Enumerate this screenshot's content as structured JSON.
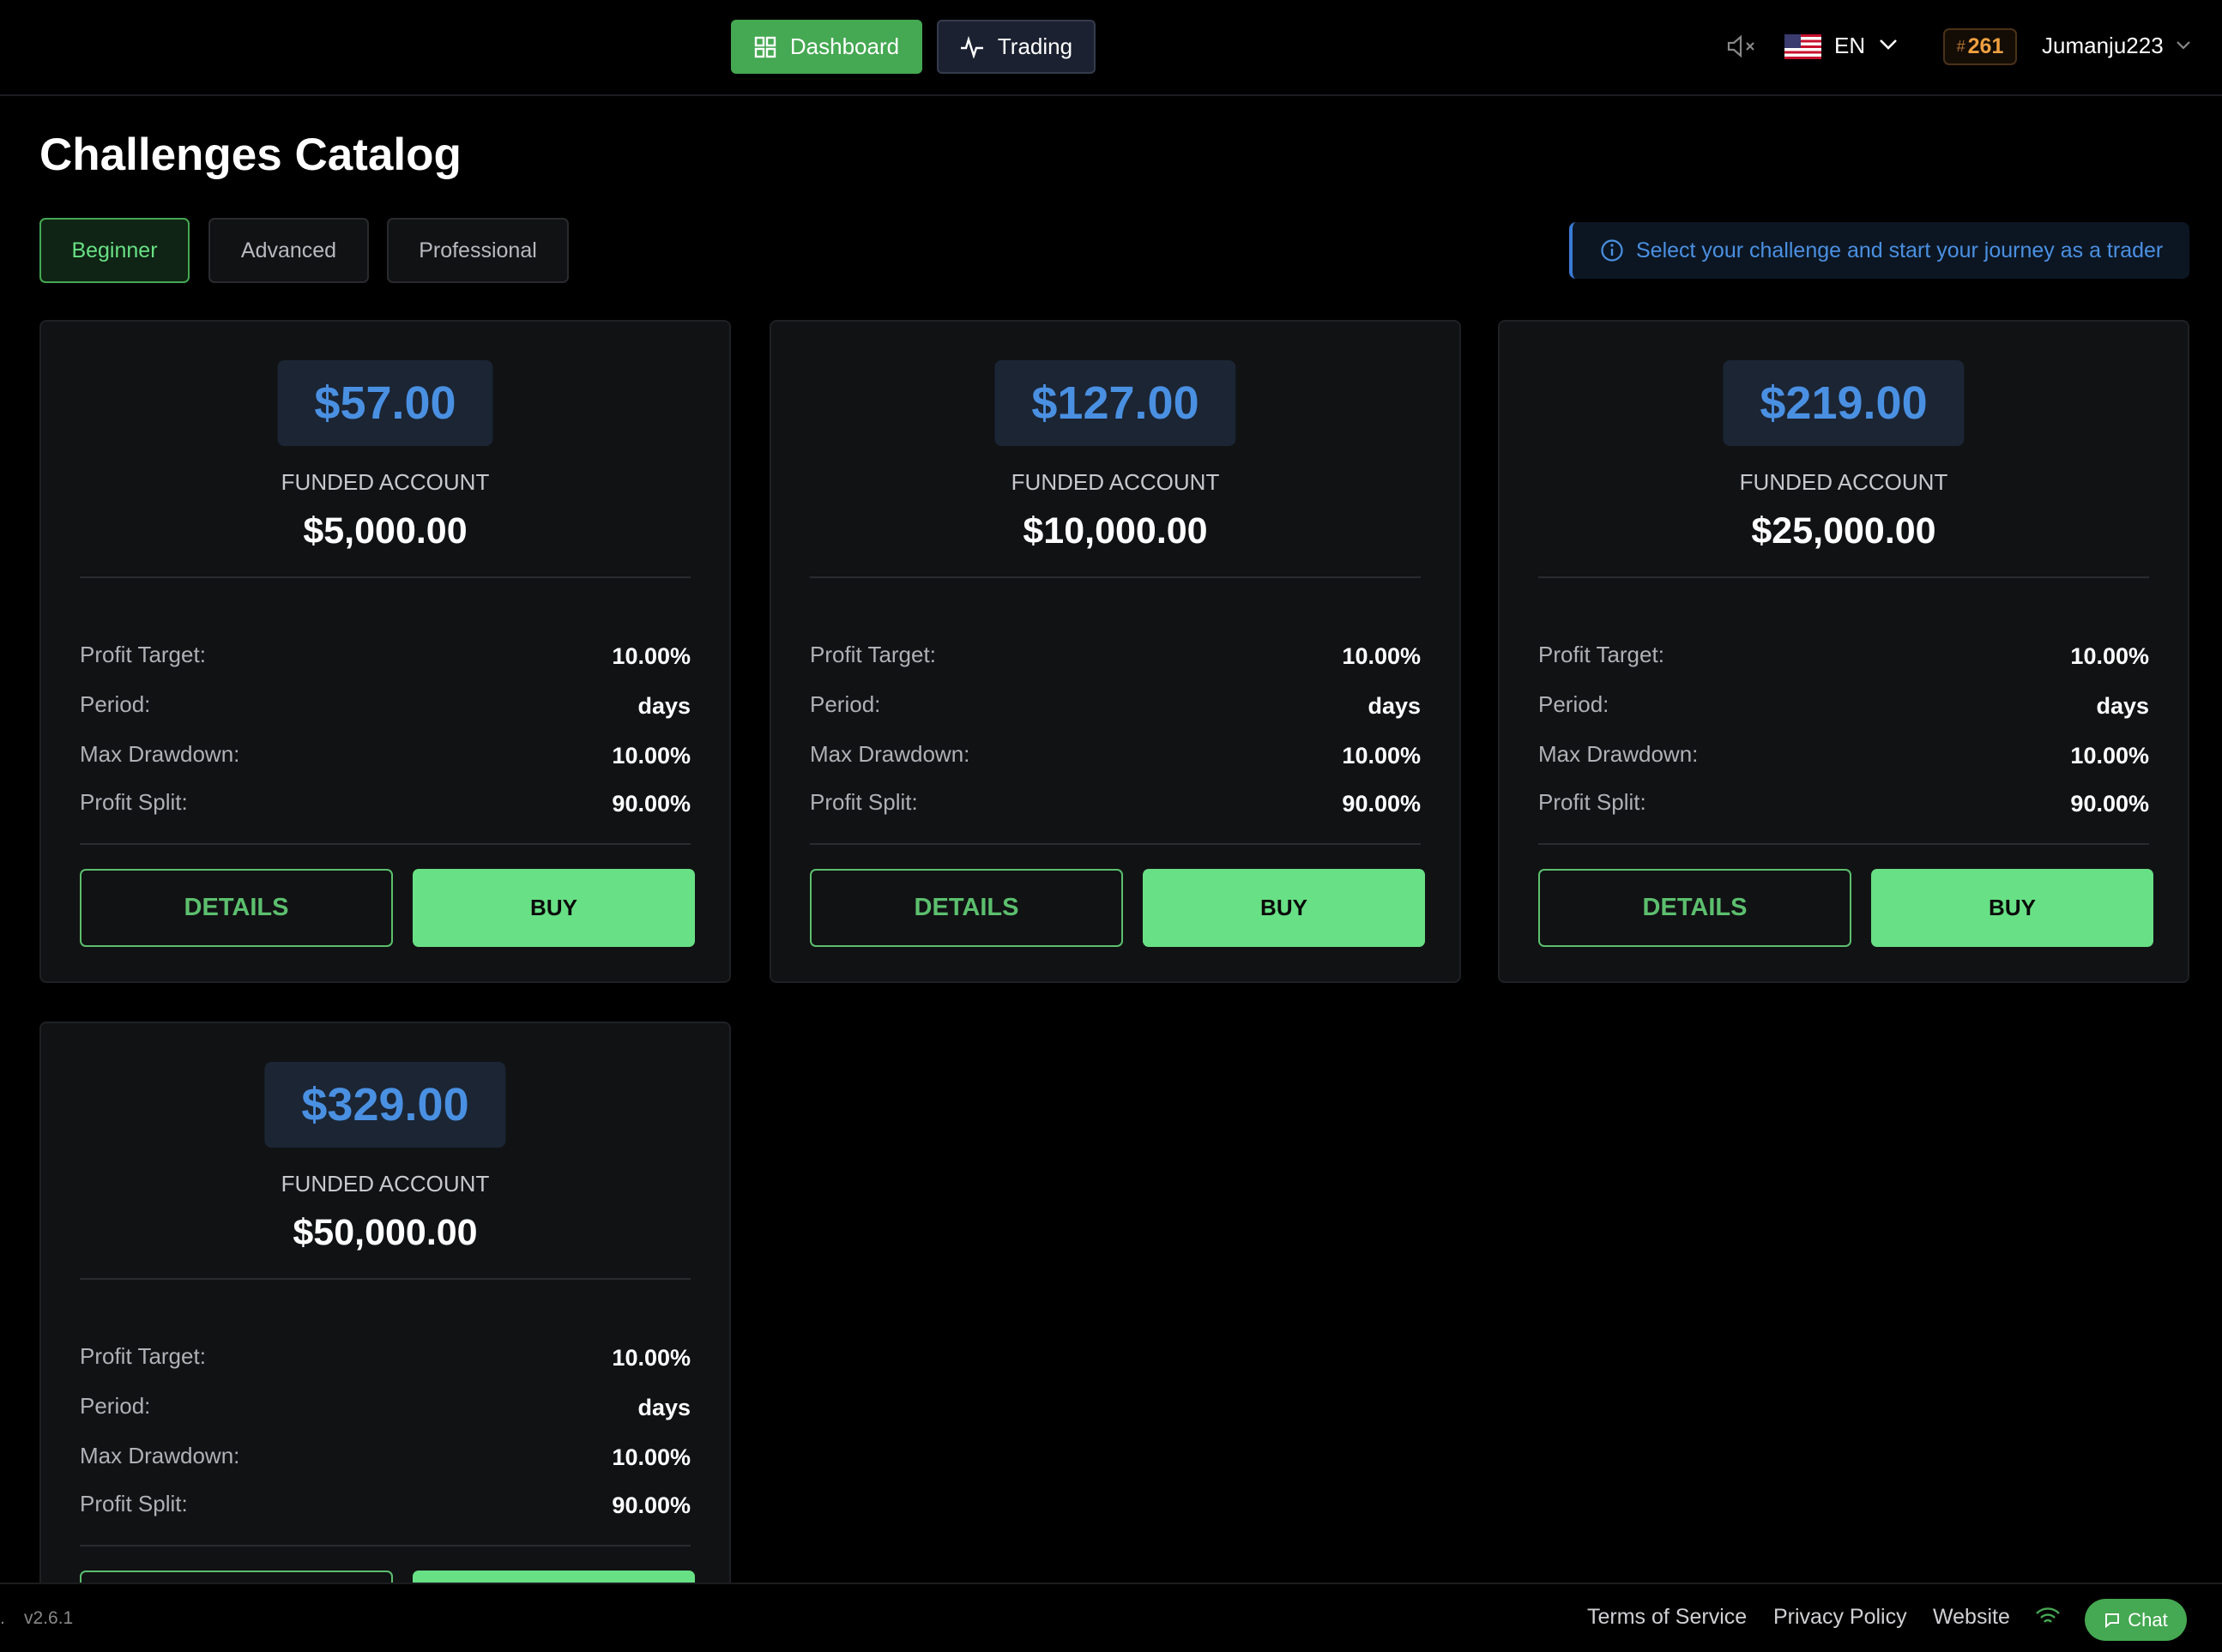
{
  "header": {
    "nav": [
      "Dashboard",
      "Trading"
    ],
    "language": "EN",
    "rank": "261",
    "username": "Jumanju223"
  },
  "page_title": "Challenges Catalog",
  "tabs": [
    "Beginner",
    "Advanced",
    "Professional"
  ],
  "info": "Select your challenge and start your journey as a trader",
  "card_text": {
    "funded_label": "FUNDED ACCOUNT",
    "row_labels": [
      "Profit Target:",
      "Period:",
      "Max Drawdown:",
      "Profit Split:"
    ],
    "details": "DETAILS",
    "buy": "BUY"
  },
  "cards": [
    {
      "price": "$57.00",
      "amount": "$5,000.00",
      "values": [
        "10.00%",
        "days",
        "10.00%",
        "90.00%"
      ]
    },
    {
      "price": "$127.00",
      "amount": "$10,000.00",
      "values": [
        "10.00%",
        "days",
        "10.00%",
        "90.00%"
      ]
    },
    {
      "price": "$219.00",
      "amount": "$25,000.00",
      "values": [
        "10.00%",
        "days",
        "10.00%",
        "90.00%"
      ]
    },
    {
      "price": "$329.00",
      "amount": "$50,000.00",
      "values": [
        "10.00%",
        "days",
        "10.00%",
        "90.00%"
      ]
    }
  ],
  "footer": {
    "dot": ".",
    "version": "v2.6.1",
    "links": [
      "Terms of Service",
      "Privacy Policy",
      "Website"
    ],
    "chat": "Chat"
  }
}
